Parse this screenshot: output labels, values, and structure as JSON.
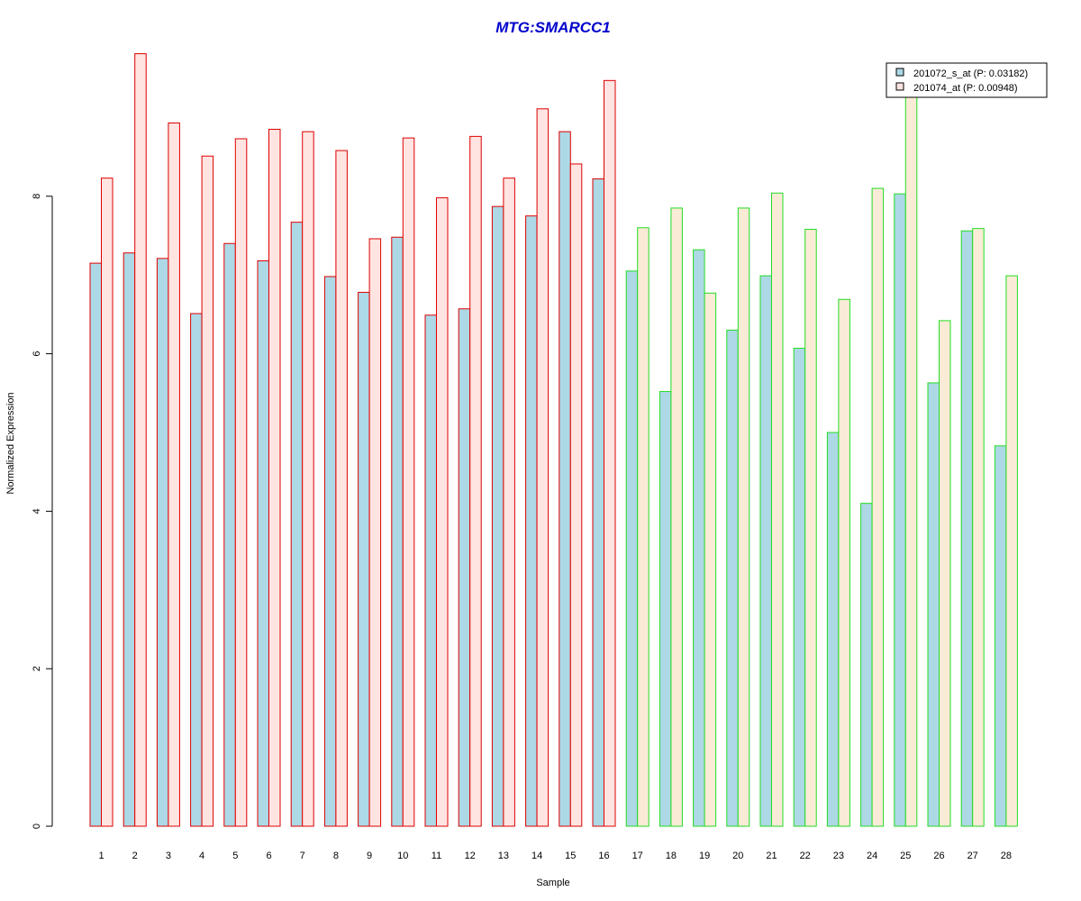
{
  "chart_data": {
    "type": "bar",
    "title": "MTG:SMARCC1",
    "xlabel": "Sample",
    "ylabel": "Normalized Expression",
    "ylim": [
      0,
      9.8
    ],
    "yticks": [
      0,
      2,
      4,
      6,
      8
    ],
    "grid": false,
    "legend_position": "top-right",
    "categories": [
      "1",
      "2",
      "3",
      "4",
      "5",
      "6",
      "7",
      "8",
      "9",
      "10",
      "11",
      "12",
      "13",
      "14",
      "15",
      "16",
      "17",
      "18",
      "19",
      "20",
      "21",
      "22",
      "23",
      "24",
      "25",
      "26",
      "27",
      "28"
    ],
    "group_border_colors": {
      "samples_1_to_16": "#dd0000",
      "samples_17_to_28": "#22dd22"
    },
    "series": [
      {
        "name": "201072_s_at (P: 0.03182)",
        "fill": "#add8e6",
        "values": [
          7.15,
          7.28,
          7.21,
          6.51,
          7.4,
          7.18,
          7.67,
          6.98,
          6.78,
          7.48,
          6.49,
          6.57,
          7.87,
          7.75,
          8.82,
          8.22,
          7.05,
          5.52,
          7.32,
          6.3,
          6.99,
          6.07,
          5.0,
          4.1,
          8.03,
          5.63,
          7.56,
          4.83
        ]
      },
      {
        "name": "201074_at (P: 0.00948)",
        "fill_group1": "#ffe4e1",
        "fill_group2": "#faebd7",
        "values": [
          8.23,
          9.81,
          8.93,
          8.51,
          8.73,
          8.85,
          8.82,
          8.58,
          7.46,
          8.74,
          7.98,
          8.76,
          8.23,
          9.11,
          8.41,
          9.47,
          7.6,
          7.85,
          6.77,
          7.85,
          8.04,
          7.58,
          6.69,
          8.1,
          9.45,
          6.42,
          7.59,
          6.99
        ]
      }
    ]
  }
}
